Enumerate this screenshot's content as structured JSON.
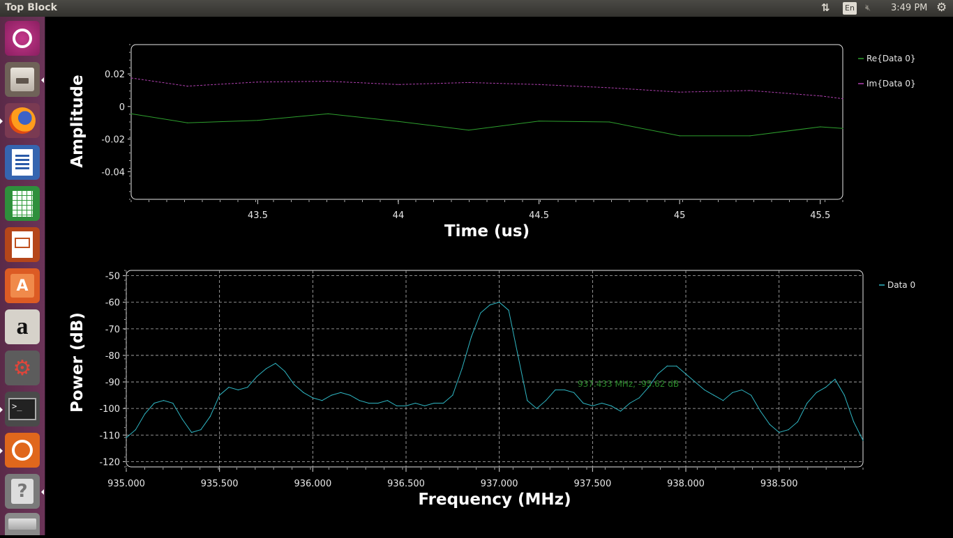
{
  "window": {
    "title": "Top Block"
  },
  "indicators": {
    "keyboard": "En",
    "clock": "3:49 PM"
  },
  "launcher": {
    "items": [
      {
        "name": "Ubuntu Dash",
        "color": "#b0307a"
      },
      {
        "name": "Files",
        "color": "#7c6e63"
      },
      {
        "name": "Firefox",
        "color": "#e66000"
      },
      {
        "name": "LibreOffice Writer",
        "color": "#2a5aa8"
      },
      {
        "name": "LibreOffice Calc",
        "color": "#2e9a3a"
      },
      {
        "name": "LibreOffice Impress",
        "color": "#c0501e"
      },
      {
        "name": "Ubuntu Software",
        "color": "#e4622c"
      },
      {
        "name": "Amazon",
        "color": "#d8d4cc"
      },
      {
        "name": "System Settings",
        "color": "#6b6b6b"
      },
      {
        "name": "Terminal",
        "color": "#2b2b2b"
      },
      {
        "name": "GNU Radio Companion",
        "color": "#e46a1a"
      },
      {
        "name": "Help",
        "color": "#8b8b8b"
      }
    ]
  },
  "chart_data": [
    {
      "type": "line",
      "title": "",
      "xlabel": "Time (us)",
      "ylabel": "Amplitude",
      "xlim": [
        43.05,
        45.58
      ],
      "ylim": [
        -0.057,
        0.038
      ],
      "xticks": [
        "43.5",
        "44",
        "44.5",
        "45",
        "45.5"
      ],
      "yticks": [
        "0.02",
        "0",
        "-0.02",
        "-0.04"
      ],
      "legend_position": "right",
      "series": [
        {
          "name": "Re{Data 0}",
          "color": "#2ea02e",
          "x": [
            43.05,
            43.25,
            43.5,
            43.75,
            44.0,
            44.25,
            44.5,
            44.75,
            45.0,
            45.25,
            45.5,
            45.58
          ],
          "y": [
            -0.0045,
            -0.01,
            -0.0085,
            -0.0045,
            -0.0092,
            -0.0145,
            -0.009,
            -0.0095,
            -0.018,
            -0.018,
            -0.0125,
            -0.0135
          ]
        },
        {
          "name": "Im{Data 0}",
          "color": "#b040b0",
          "x": [
            43.05,
            43.25,
            43.5,
            43.75,
            44.0,
            44.25,
            44.5,
            44.75,
            45.0,
            45.25,
            45.5,
            45.58
          ],
          "y": [
            0.0175,
            0.0125,
            0.015,
            0.0155,
            0.0135,
            0.0147,
            0.0135,
            0.0115,
            0.0088,
            0.0098,
            0.0065,
            0.0048
          ]
        }
      ]
    },
    {
      "type": "line",
      "title": "",
      "xlabel": "Frequency (MHz)",
      "ylabel": "Power (dB)",
      "xlim": [
        935.0,
        938.95
      ],
      "ylim": [
        -122,
        -48
      ],
      "grid": true,
      "xticks": [
        "935.000",
        "935.500",
        "936.000",
        "936.500",
        "937.000",
        "937.500",
        "938.000",
        "938.500"
      ],
      "yticks": [
        "-50",
        "-60",
        "-70",
        "-80",
        "-90",
        "-100",
        "-110",
        "-120"
      ],
      "legend_position": "right",
      "annotation": "937.433 MHz, -95.62 dB",
      "series": [
        {
          "name": "Data 0",
          "color": "#2fb7c4",
          "x": [
            935.0,
            935.05,
            935.1,
            935.15,
            935.2,
            935.25,
            935.3,
            935.35,
            935.4,
            935.45,
            935.5,
            935.55,
            935.6,
            935.65,
            935.7,
            935.75,
            935.8,
            935.85,
            935.9,
            935.95,
            936.0,
            936.05,
            936.1,
            936.15,
            936.2,
            936.25,
            936.3,
            936.35,
            936.4,
            936.45,
            936.5,
            936.55,
            936.6,
            936.65,
            936.7,
            936.75,
            936.8,
            936.85,
            936.9,
            936.95,
            937.0,
            937.05,
            937.1,
            937.15,
            937.2,
            937.25,
            937.3,
            937.35,
            937.4,
            937.45,
            937.5,
            937.55,
            937.6,
            937.65,
            937.7,
            937.75,
            937.8,
            937.85,
            937.9,
            937.95,
            938.0,
            938.05,
            938.1,
            938.15,
            938.2,
            938.25,
            938.3,
            938.35,
            938.4,
            938.45,
            938.5,
            938.55,
            938.6,
            938.65,
            938.7,
            938.75,
            938.8,
            938.85,
            938.9,
            938.95
          ],
          "y": [
            -111,
            -108,
            -102,
            -98,
            -97,
            -98,
            -104,
            -109,
            -108,
            -103,
            -95,
            -92,
            -93,
            -92,
            -88,
            -85,
            -83,
            -86,
            -91,
            -94,
            -96,
            -97,
            -95,
            -94,
            -95,
            -97,
            -98,
            -98,
            -97,
            -99,
            -99,
            -98,
            -99,
            -98,
            -98,
            -95,
            -85,
            -73,
            -64,
            -61,
            -60,
            -63,
            -80,
            -97,
            -100,
            -97,
            -93,
            -93,
            -94,
            -98,
            -99,
            -98,
            -99,
            -101,
            -98,
            -96,
            -92,
            -87,
            -84,
            -84,
            -87,
            -90,
            -93,
            -95,
            -97,
            -94,
            -93,
            -95,
            -101,
            -106,
            -109,
            -108,
            -105,
            -98,
            -94,
            -92,
            -89,
            -95,
            -105,
            -112
          ]
        }
      ]
    }
  ]
}
